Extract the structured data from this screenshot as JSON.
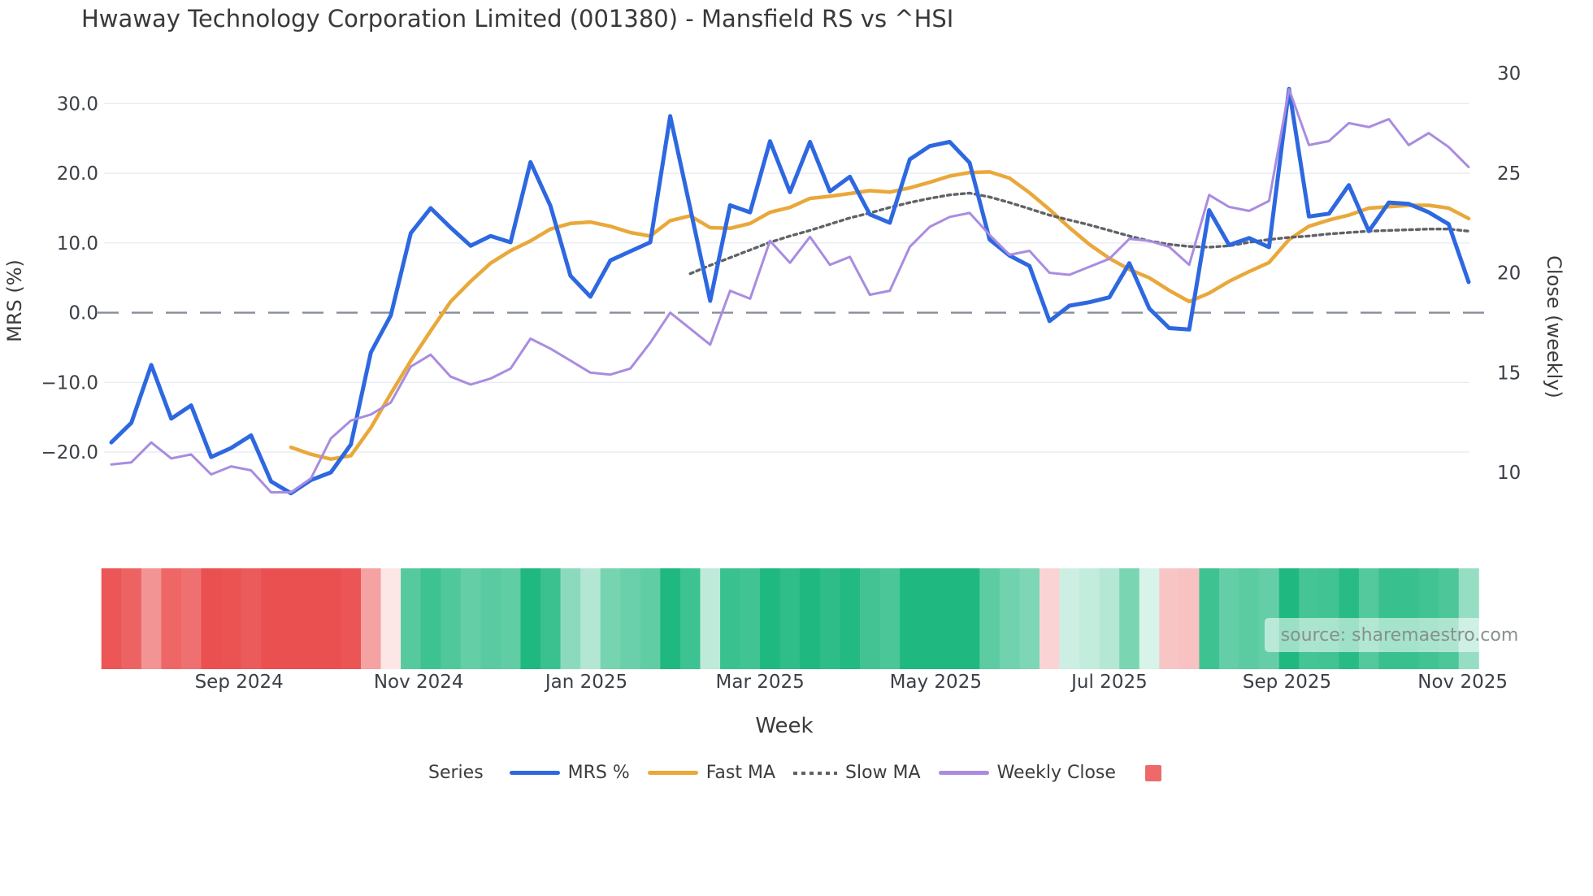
{
  "title": "Hwaway Technology Corporation Limited (001380) - Mansfield RS vs ^HSI",
  "source": "source: sharemaestro.com",
  "legend": {
    "title": "Series",
    "items": [
      {
        "label": "MRS %",
        "type": "line",
        "color": "#2e68e0"
      },
      {
        "label": "Fast MA",
        "type": "line",
        "color": "#e9a83a"
      },
      {
        "label": "Slow MA",
        "type": "dotted",
        "color": "#5f6368"
      },
      {
        "label": "Weekly Close",
        "type": "line",
        "color": "#a98ce0"
      },
      {
        "label": "",
        "type": "square",
        "color": "#ee6a6a"
      }
    ]
  },
  "chart_data": {
    "type": "line",
    "title": "Hwaway Technology Corporation Limited (001380) - Mansfield RS vs ^HSI",
    "xlabel": "Week",
    "ylabel_left": "MRS (%)",
    "ylabel_right": "Close (weekly)",
    "n_points": 69,
    "x_unit": "week",
    "x_ticks": [
      {
        "pos": 6.4,
        "label": "Sep 2024"
      },
      {
        "pos": 15.4,
        "label": "Nov 2024"
      },
      {
        "pos": 23.8,
        "label": "Jan 2025"
      },
      {
        "pos": 32.5,
        "label": "Mar 2025"
      },
      {
        "pos": 41.3,
        "label": "May 2025"
      },
      {
        "pos": 50.0,
        "label": "Jul 2025"
      },
      {
        "pos": 58.9,
        "label": "Sep 2025"
      },
      {
        "pos": 67.7,
        "label": "Nov 2025"
      }
    ],
    "y_left": {
      "tick_labels": [
        "30.0",
        "20.0",
        "10.0",
        "0.0",
        "−10.0",
        "−20.0"
      ],
      "tick_values": [
        30,
        20,
        10,
        0,
        -10,
        -20
      ]
    },
    "y_right": {
      "tick_labels": [
        "30",
        "25",
        "20",
        "15",
        "10"
      ],
      "tick_values": [
        30,
        25,
        20,
        15,
        10
      ]
    },
    "zero_line_left_axis": 0,
    "series": [
      {
        "name": "MRS %",
        "axis": "left",
        "color": "#2e68e0",
        "width": 5,
        "style": "solid",
        "values": [
          -18.6,
          -15.8,
          -7.5,
          -15.2,
          -13.3,
          -20.7,
          -19.4,
          -17.6,
          -24.2,
          -25.9,
          -24.0,
          -22.9,
          -18.9,
          -5.7,
          -0.4,
          11.4,
          15.0,
          12.2,
          9.6,
          11.0,
          10.1,
          21.6,
          15.3,
          5.3,
          2.3,
          7.5,
          8.8,
          10.1,
          28.2,
          15.0,
          1.7,
          15.4,
          14.4,
          24.6,
          17.3,
          24.5,
          17.4,
          19.5,
          14.1,
          12.9,
          22.0,
          23.9,
          24.5,
          21.5,
          10.5,
          8.2,
          6.7,
          -1.2,
          1.0,
          1.5,
          2.2,
          7.1,
          0.6,
          -2.2,
          -2.4,
          14.7,
          9.7,
          10.7,
          9.4,
          32.1,
          13.8,
          14.2,
          18.3,
          11.7,
          15.8,
          15.6,
          14.4,
          12.7,
          4.4
        ]
      },
      {
        "name": "Fast MA",
        "axis": "left",
        "color": "#e9a83a",
        "width": 4.5,
        "style": "solid",
        "values": [
          null,
          null,
          null,
          null,
          null,
          null,
          null,
          null,
          null,
          -19.3,
          -20.3,
          -21.0,
          -20.5,
          -16.5,
          -11.6,
          -6.9,
          -2.6,
          1.6,
          4.5,
          7.1,
          8.9,
          10.3,
          12.0,
          12.8,
          13.0,
          12.4,
          11.5,
          11.0,
          13.2,
          13.9,
          12.2,
          12.1,
          12.8,
          14.4,
          15.1,
          16.4,
          16.7,
          17.1,
          17.5,
          17.3,
          17.9,
          18.7,
          19.6,
          20.1,
          20.2,
          19.3,
          17.2,
          14.8,
          12.2,
          9.8,
          7.8,
          6.2,
          5.0,
          3.2,
          1.6,
          2.8,
          4.5,
          5.9,
          7.2,
          10.5,
          12.4,
          13.3,
          14.0,
          15.0,
          15.2,
          15.4,
          15.4,
          15.0,
          13.5
        ]
      },
      {
        "name": "Slow MA",
        "axis": "left",
        "color": "#5f6368",
        "width": 3.4,
        "style": "dotted",
        "values": [
          null,
          null,
          null,
          null,
          null,
          null,
          null,
          null,
          null,
          null,
          null,
          null,
          null,
          null,
          null,
          null,
          null,
          null,
          null,
          null,
          null,
          null,
          null,
          null,
          null,
          null,
          null,
          null,
          null,
          5.6,
          6.8,
          7.9,
          9.0,
          10.1,
          11.0,
          11.8,
          12.7,
          13.6,
          14.3,
          15.1,
          15.8,
          16.4,
          16.9,
          17.15,
          16.6,
          15.8,
          14.9,
          14.0,
          13.3,
          12.6,
          11.8,
          11.0,
          10.3,
          9.8,
          9.5,
          9.4,
          9.6,
          10.1,
          10.5,
          10.8,
          11.0,
          11.3,
          11.5,
          11.7,
          11.8,
          11.9,
          12.0,
          12.0,
          11.7
        ]
      },
      {
        "name": "Weekly Close",
        "axis": "right",
        "color": "#a98ce0",
        "width": 3,
        "style": "solid",
        "values": [
          10.4,
          10.5,
          11.5,
          10.7,
          10.9,
          9.9,
          10.3,
          10.1,
          9.0,
          9.0,
          9.7,
          11.7,
          12.6,
          12.9,
          13.5,
          15.3,
          15.9,
          14.8,
          14.4,
          14.7,
          15.2,
          16.7,
          16.2,
          15.6,
          15.0,
          14.9,
          15.2,
          16.5,
          18.0,
          17.2,
          16.4,
          19.1,
          18.7,
          21.6,
          20.5,
          21.8,
          20.4,
          20.8,
          18.9,
          19.1,
          21.3,
          22.3,
          22.8,
          23.0,
          21.9,
          20.9,
          21.1,
          20.0,
          19.9,
          20.3,
          20.7,
          21.7,
          21.6,
          21.3,
          20.4,
          23.9,
          23.3,
          23.1,
          23.6,
          29.2,
          26.4,
          26.6,
          27.5,
          27.3,
          27.7,
          26.4,
          27.0,
          26.3,
          25.3
        ]
      }
    ],
    "heatmap": {
      "maps_series": "MRS %",
      "scale": {
        "negative": "#eb5050",
        "zero": "#ffffff",
        "positive": "#1fb880"
      },
      "saturation_abs": 20
    }
  }
}
